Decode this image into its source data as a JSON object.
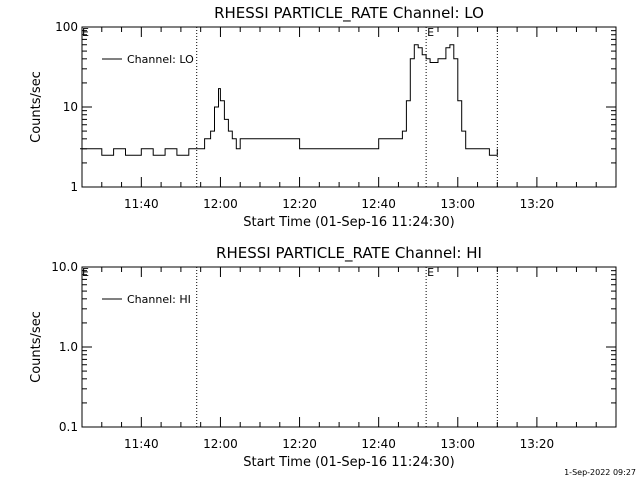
{
  "chart_data": [
    {
      "type": "line",
      "title": "RHESSI PARTICLE_RATE Channel: LO",
      "xlabel": "Start Time (01-Sep-16 11:24:30)",
      "ylabel": "Counts/sec",
      "x_unit": "time of day (HH:MM, 01-Sep-16)",
      "xlim": [
        "11:25",
        "13:40"
      ],
      "ylim": [
        1,
        100
      ],
      "yscale": "log",
      "x_ticks": [
        "11:40",
        "12:00",
        "12:20",
        "12:40",
        "13:00",
        "13:20"
      ],
      "y_ticks": [
        "1",
        "10",
        "100"
      ],
      "legend": {
        "placement": "top-left",
        "entries": [
          "Channel: LO"
        ]
      },
      "vertical_lines": [
        "11:54",
        "12:52",
        "13:10"
      ],
      "markers": [
        {
          "text": "E",
          "x": "11:25"
        },
        {
          "text": "E",
          "x": "12:52"
        }
      ],
      "series": [
        {
          "name": "Channel: LO",
          "x": [
            "11:24:30",
            "11:27",
            "11:30",
            "11:33",
            "11:36",
            "11:40",
            "11:43",
            "11:46",
            "11:49",
            "11:52",
            "11:54",
            "11:56",
            "11:57:30",
            "11:58:30",
            "11:59:30",
            "12:00",
            "12:01",
            "12:02",
            "12:03",
            "12:04",
            "12:05",
            "12:07",
            "12:10",
            "12:15",
            "12:20",
            "12:25",
            "12:30",
            "12:35",
            "12:40",
            "12:44",
            "12:46",
            "12:47",
            "12:48",
            "12:49",
            "12:50",
            "12:51",
            "12:52",
            "12:53",
            "12:55",
            "12:57",
            "12:58",
            "12:59",
            "13:00",
            "13:01",
            "13:02",
            "13:03",
            "13:06",
            "13:08",
            "13:10"
          ],
          "values": [
            3,
            3,
            2.5,
            3,
            2.5,
            3,
            2.5,
            3,
            2.5,
            3,
            3,
            4,
            5,
            10,
            17,
            12,
            7,
            5,
            4,
            3,
            4,
            4,
            4,
            4,
            3,
            3,
            3,
            3,
            4,
            4,
            5,
            12,
            40,
            60,
            55,
            45,
            40,
            36,
            40,
            55,
            60,
            40,
            12,
            5,
            3,
            3,
            3,
            2.5,
            3
          ]
        }
      ]
    },
    {
      "type": "line",
      "title": "RHESSI PARTICLE_RATE Channel: HI",
      "xlabel": "Start Time (01-Sep-16 11:24:30)",
      "ylabel": "Counts/sec",
      "x_unit": "time of day (HH:MM, 01-Sep-16)",
      "xlim": [
        "11:25",
        "13:40"
      ],
      "ylim": [
        0.1,
        10
      ],
      "yscale": "log",
      "x_ticks": [
        "11:40",
        "12:00",
        "12:20",
        "12:40",
        "13:00",
        "13:20"
      ],
      "y_ticks": [
        "0.1",
        "1.0",
        "10.0"
      ],
      "legend": {
        "placement": "top-left",
        "entries": [
          "Channel: HI"
        ]
      },
      "vertical_lines": [
        "11:54",
        "12:52",
        "13:10"
      ],
      "markers": [
        {
          "text": "E",
          "x": "11:25"
        },
        {
          "text": "E",
          "x": "12:52"
        }
      ],
      "series": [
        {
          "name": "Channel: HI",
          "x": [],
          "values": []
        }
      ]
    }
  ],
  "footer": {
    "timestamp": "1-Sep-2022 09:27"
  }
}
